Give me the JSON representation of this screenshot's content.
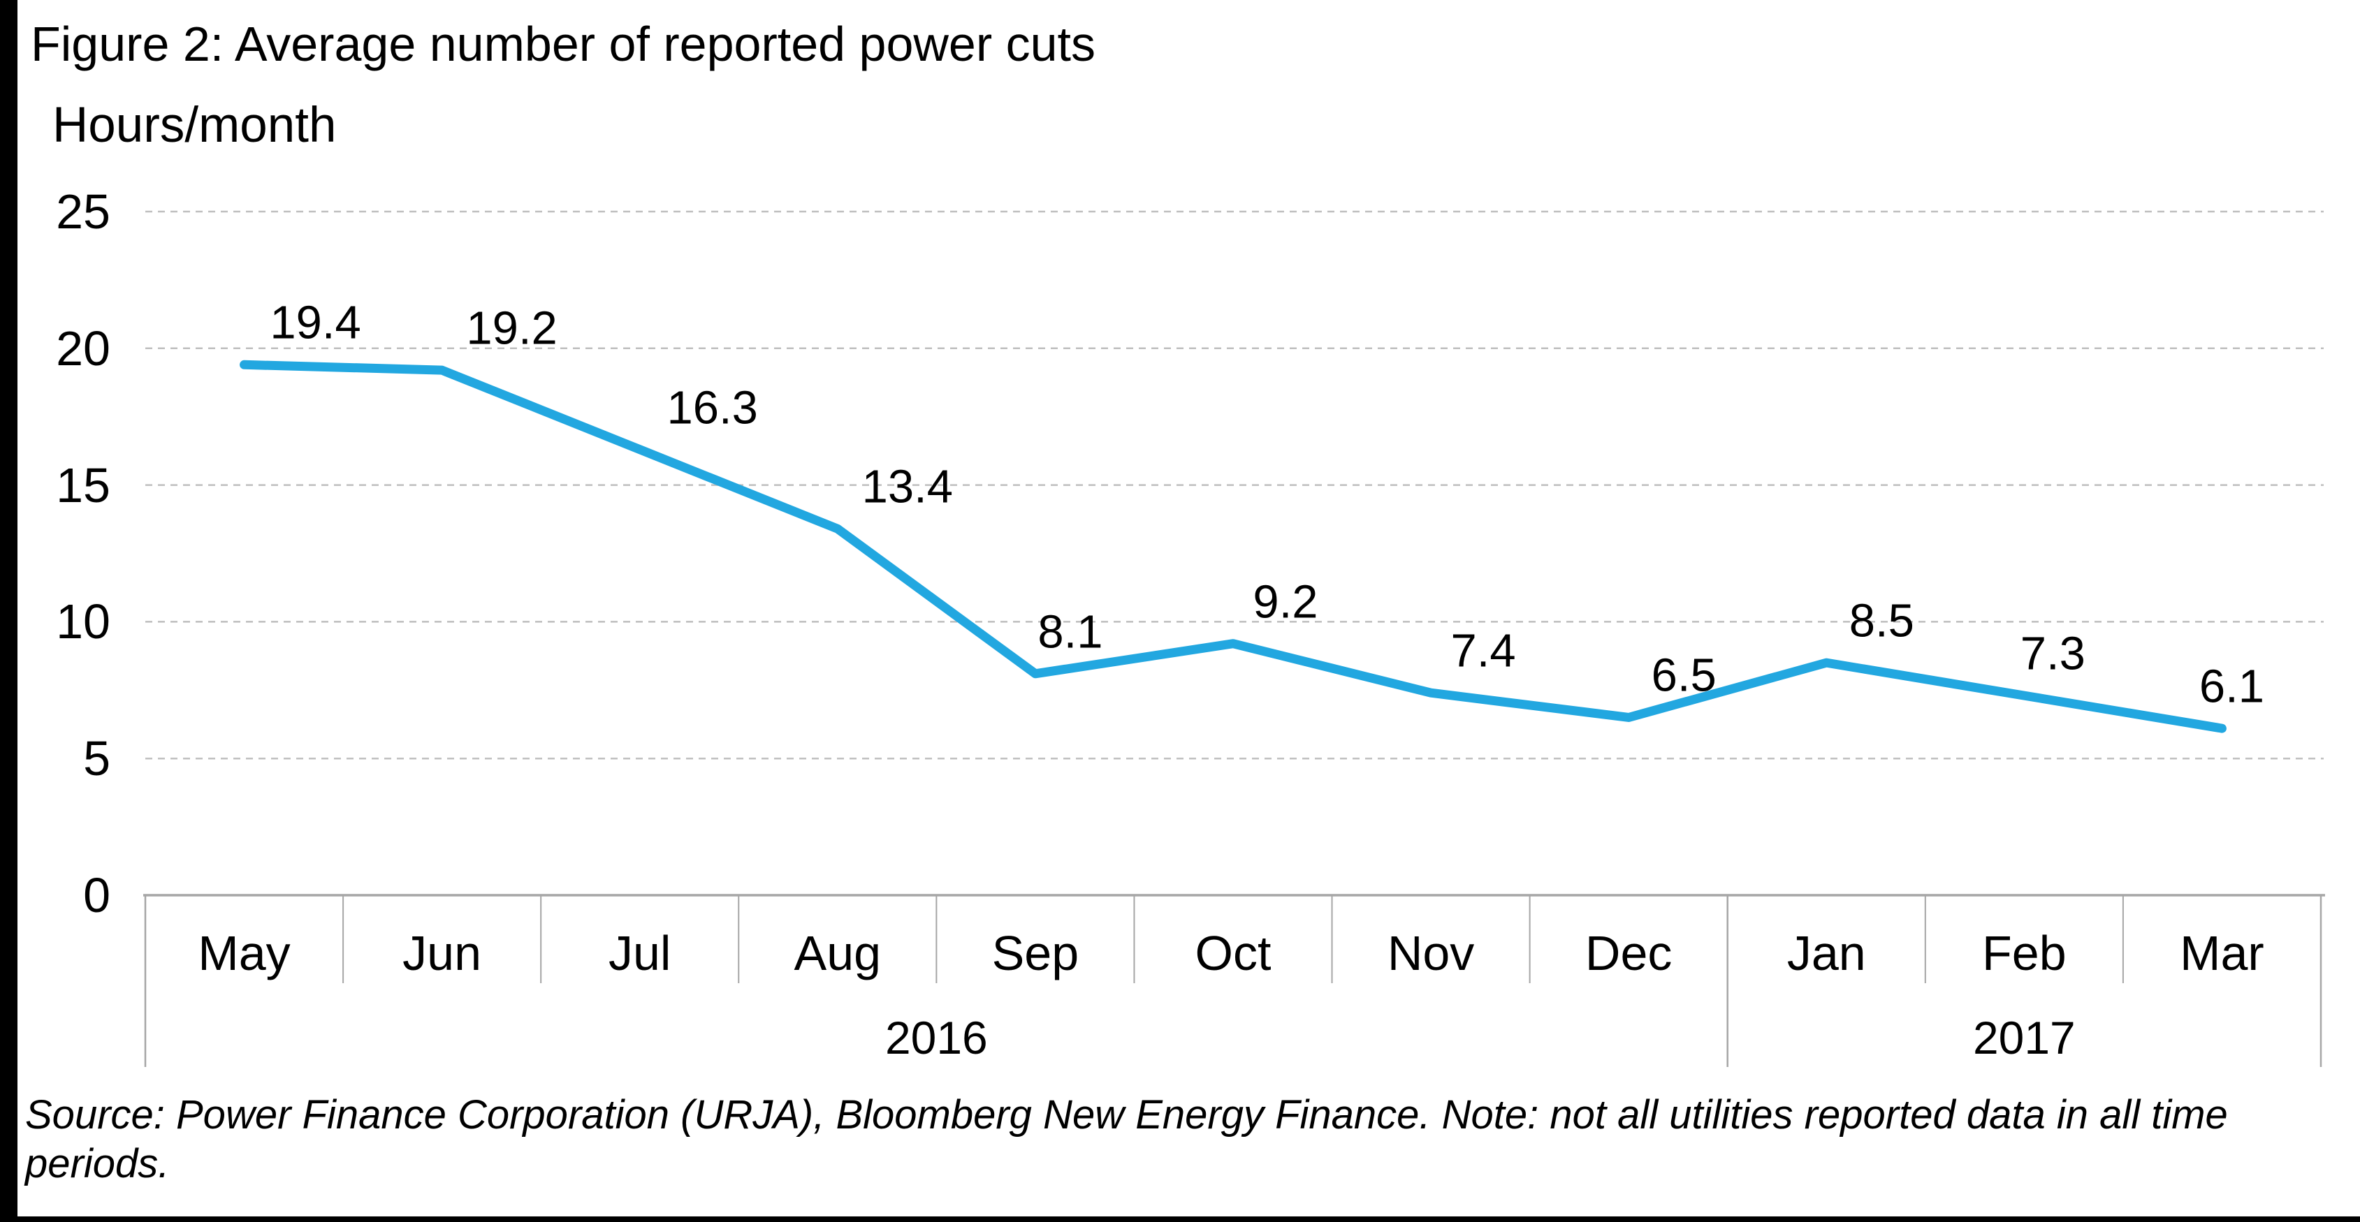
{
  "figure": {
    "title": "Figure 2: Average number of reported power cuts",
    "source_note": "Source: Power Finance Corporation (URJA), Bloomberg New Energy Finance. Note: not all utilities reported data in all time periods."
  },
  "chart_data": {
    "type": "line",
    "title": "Figure 2: Average number of reported power cuts",
    "ylabel": "Hours/month",
    "xlabel": "",
    "categories": [
      "May",
      "Jun",
      "Jul",
      "Aug",
      "Sep",
      "Oct",
      "Nov",
      "Dec",
      "Jan",
      "Feb",
      "Mar"
    ],
    "values": [
      19.4,
      19.2,
      16.3,
      13.4,
      8.1,
      9.2,
      7.4,
      6.5,
      8.5,
      7.3,
      6.1
    ],
    "data_labels": [
      "19.4",
      "19.2",
      "16.3",
      "13.4",
      "8.1",
      "9.2",
      "7.4",
      "6.5",
      "8.5",
      "7.3",
      "6.1"
    ],
    "year_groups": [
      {
        "label": "2016",
        "start": 0,
        "end": 7
      },
      {
        "label": "2017",
        "start": 8,
        "end": 10
      }
    ],
    "y_ticks": [
      25,
      20,
      15,
      10,
      5,
      0
    ],
    "ylim": [
      0,
      25
    ],
    "grid": "horizontal-dashed",
    "legend": "none",
    "colors": {
      "line": "#22A7E0",
      "grid": "#BFBFBF",
      "axis": "#A6A6A6",
      "text": "#000000",
      "frame": "#000000"
    }
  }
}
